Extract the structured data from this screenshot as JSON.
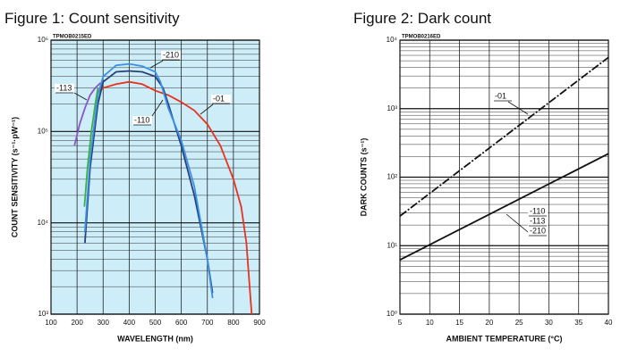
{
  "chart_data": [
    {
      "type": "line",
      "title": "Figure 1: Count sensitivity",
      "code": "TPMOB0215ED",
      "xlabel": "WAVELENGTH (nm)",
      "ylabel": "COUNT SENSITIVITY (s⁻¹·pW⁻¹)",
      "log_y": true,
      "grid": true,
      "background": "#cdeef9",
      "xlim": [
        100,
        900
      ],
      "xticks": [
        100,
        200,
        300,
        400,
        500,
        600,
        700,
        800,
        900
      ],
      "ylim": [
        1000,
        1000000
      ],
      "yticks": [
        {
          "value": 1000,
          "label": "10³"
        },
        {
          "value": 10000,
          "label": "10⁴"
        },
        {
          "value": 100000,
          "label": "10⁵"
        },
        {
          "value": 1000000,
          "label": "10⁶"
        }
      ],
      "series": [
        {
          "name": "-01",
          "color": "#e8321e",
          "x": [
            275,
            300,
            350,
            400,
            450,
            500,
            550,
            600,
            650,
            700,
            750,
            800,
            830,
            850,
            870
          ],
          "values": [
            260000,
            300000,
            330000,
            350000,
            330000,
            280000,
            250000,
            210000,
            170000,
            120000,
            70000,
            30000,
            15000,
            6000,
            1000
          ]
        },
        {
          "name": "-110",
          "color": "#26407a",
          "x": [
            230,
            250,
            280,
            300,
            350,
            400,
            450,
            500,
            530,
            550,
            600,
            650,
            700,
            720
          ],
          "values": [
            6000,
            40000,
            200000,
            350000,
            450000,
            460000,
            450000,
            400000,
            300000,
            200000,
            70000,
            20000,
            4000,
            1700
          ]
        },
        {
          "name": "-113",
          "color": "#8a55c8",
          "x": [
            190,
            210,
            230,
            250,
            270,
            290
          ],
          "values": [
            70000,
            120000,
            180000,
            250000,
            300000,
            340000
          ]
        },
        {
          "name": "-210",
          "color": "#3d8fe6",
          "x": [
            230,
            250,
            280,
            300,
            350,
            400,
            450,
            500,
            520,
            550,
            600,
            650,
            700,
            720
          ],
          "values": [
            8000,
            50000,
            250000,
            400000,
            530000,
            550000,
            520000,
            450000,
            350000,
            180000,
            80000,
            25000,
            4000,
            1500
          ]
        },
        {
          "color": "#3cb043",
          "x": [
            228,
            240,
            255,
            270,
            280
          ],
          "values": [
            15000,
            40000,
            100000,
            200000,
            300000
          ]
        }
      ]
    },
    {
      "type": "line",
      "title": "Figure 2: Dark count",
      "code": "TPMOB0216ED",
      "xlabel": "AMBIENT TEMPERATURE (°C)",
      "ylabel": "DARK COUNTS (s⁻¹)",
      "log_y": true,
      "grid": true,
      "background": "#ffffff",
      "xlim": [
        5,
        40
      ],
      "xticks": [
        5,
        10,
        15,
        20,
        25,
        30,
        35,
        40
      ],
      "ylim": [
        1,
        10000
      ],
      "yticks": [
        {
          "value": 1,
          "label": "10⁰"
        },
        {
          "value": 10,
          "label": "10¹"
        },
        {
          "value": 100,
          "label": "10²"
        },
        {
          "value": 1000,
          "label": "10³"
        },
        {
          "value": 10000,
          "label": "10⁴"
        }
      ],
      "series": [
        {
          "name": "-01",
          "color": "#111111",
          "dashed": true,
          "x": [
            5,
            40
          ],
          "values": [
            27,
            5600
          ]
        },
        {
          "names": [
            "-110",
            "-113",
            "-210"
          ],
          "color": "#111111",
          "x": [
            5,
            40
          ],
          "values": [
            6.2,
            220
          ]
        }
      ]
    }
  ]
}
